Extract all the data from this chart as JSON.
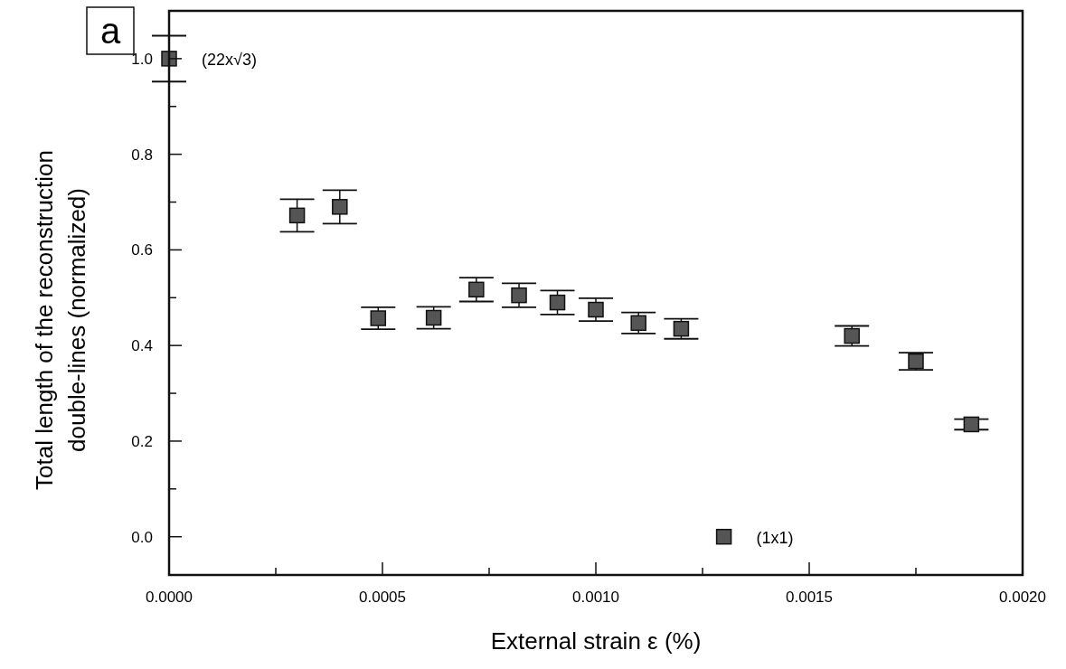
{
  "chart_data": {
    "type": "scatter",
    "xlabel": "External strain ε (%)",
    "ylabel": "Total length of the reconstruction\ndouble-lines (normalized)",
    "annotations": [
      "a",
      {
        "text": "(22x√3)",
        "x": 0,
        "y": 1.0
      },
      {
        "text": "(1x1)",
        "x": 0.0013,
        "y": 0
      }
    ],
    "series": [
      {
        "color": "#555555",
        "x": [
          0,
          0.0003,
          0.0004,
          0.00049,
          0.00062,
          0.00072,
          0.00082,
          0.00091,
          0.001,
          0.0011,
          0.0012,
          0.0013,
          0.0016,
          0.00175,
          0.00188
        ],
        "values": [
          1.0,
          0.672,
          0.69,
          0.457,
          0.458,
          0.517,
          0.505,
          0.49,
          0.475,
          0.447,
          0.435,
          0,
          0.42,
          0.367,
          0.235
        ],
        "errors": [
          0.048,
          0.034,
          0.035,
          0.023,
          0.023,
          0.025,
          0.025,
          0.025,
          0.024,
          0.022,
          0.021,
          null,
          0.021,
          0.018,
          0.011
        ]
      }
    ],
    "marker": "square",
    "grid": false,
    "xlim": [
      0,
      0.002
    ],
    "ylim": [
      -0.08,
      1.1
    ],
    "xticks": [
      {
        "value": 0,
        "label": "0.0000"
      },
      {
        "value": 0.00025,
        "label": null
      },
      {
        "value": 0.0005,
        "label": "0.0005"
      },
      {
        "value": 0.00075,
        "label": null
      },
      {
        "value": 0.001,
        "label": "0.0010"
      },
      {
        "value": 0.00125,
        "label": null
      },
      {
        "value": 0.0015,
        "label": "0.0015"
      },
      {
        "value": 0.00175,
        "label": null
      },
      {
        "value": 0.002,
        "label": "0.0020"
      }
    ],
    "yticks": [
      {
        "value": 0,
        "label": "0.0"
      },
      {
        "value": 0.1,
        "label": null
      },
      {
        "value": 0.2,
        "label": "0.2"
      },
      {
        "value": 0.3,
        "label": null
      },
      {
        "value": 0.4,
        "label": "0.4"
      },
      {
        "value": 0.5,
        "label": null
      },
      {
        "value": 0.6,
        "label": "0.6"
      },
      {
        "value": 0.7,
        "label": null
      },
      {
        "value": 0.8,
        "label": "0.8"
      },
      {
        "value": 0.9,
        "label": null
      },
      {
        "value": 1.0,
        "label": "1.0"
      }
    ]
  }
}
